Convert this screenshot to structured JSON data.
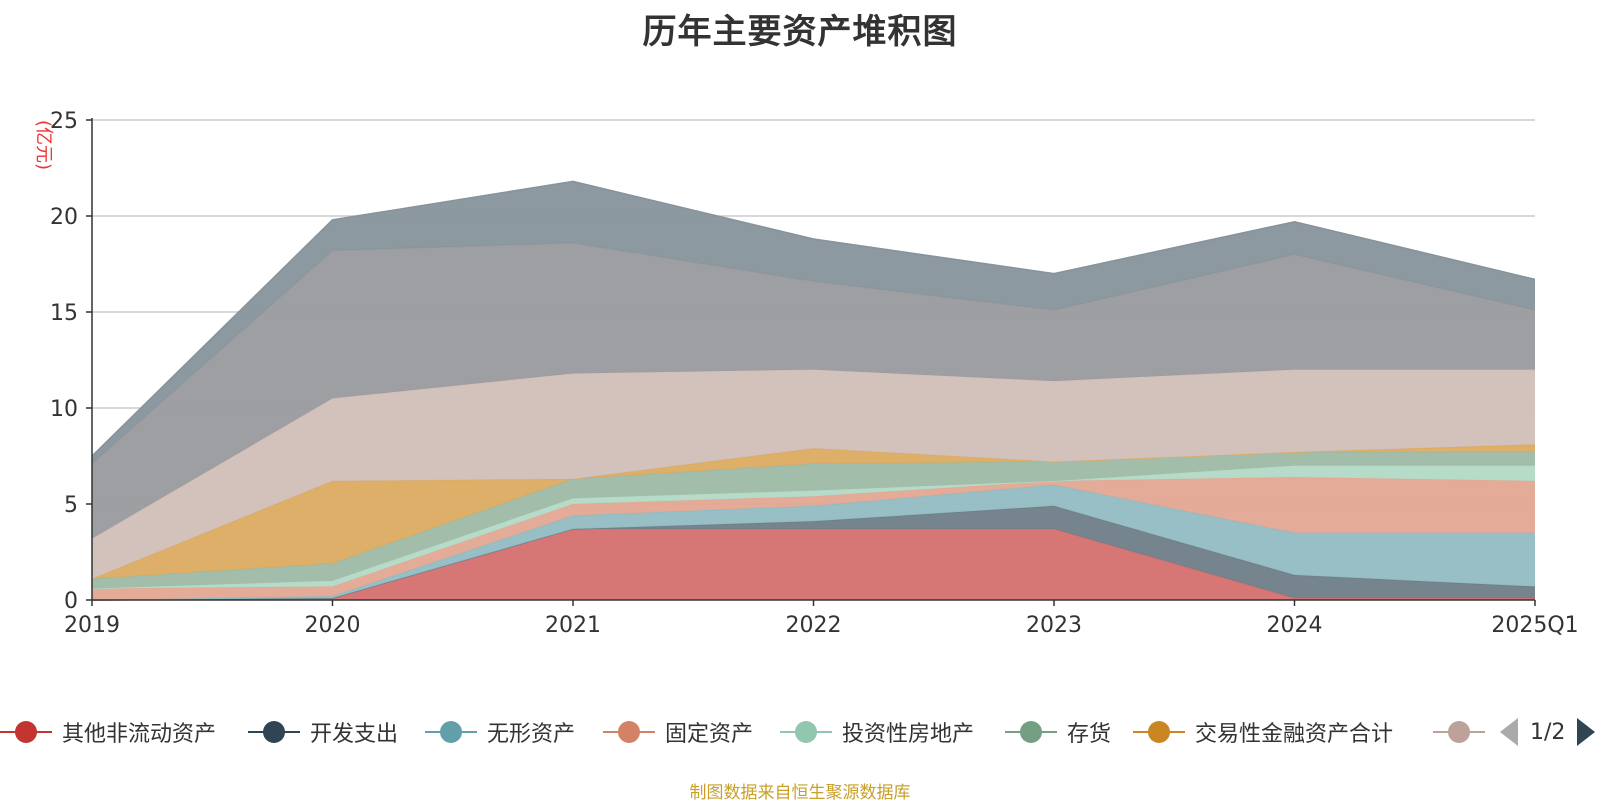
{
  "source_note": "制图数据来自恒生聚源数据库",
  "pager": {
    "text": "1/2"
  },
  "chart_data": {
    "type": "area",
    "stacked": true,
    "title": "历年主要资产堆积图",
    "ylabel": "(亿元)",
    "ylabel_color": "#ee3333",
    "ylim": [
      0,
      25
    ],
    "yticks": [
      0,
      5,
      10,
      15,
      20,
      25
    ],
    "ytick_labels": [
      "0",
      "5",
      "10",
      "15",
      "20",
      "25"
    ],
    "grid": true,
    "categories": [
      "2019",
      "2020",
      "2021",
      "2022",
      "2023",
      "2024",
      "2025Q1"
    ],
    "series": [
      {
        "name": "其他非流动资产",
        "color": "#c23531",
        "fill": "#d4706f",
        "values": [
          0.0,
          0.1,
          3.7,
          3.7,
          3.7,
          0.1,
          0.1
        ]
      },
      {
        "name": "开发支出",
        "color": "#2f4554",
        "fill": "#6f7d87",
        "values": [
          0.0,
          0.0,
          0.0,
          0.4,
          1.2,
          1.2,
          0.6
        ]
      },
      {
        "name": "无形资产",
        "color": "#61a0a8",
        "fill": "#91bcc2",
        "values": [
          0.0,
          0.1,
          0.7,
          0.8,
          1.1,
          2.2,
          2.8
        ]
      },
      {
        "name": "固定资产",
        "color": "#d48265",
        "fill": "#e3a892",
        "values": [
          0.6,
          0.5,
          0.6,
          0.5,
          0.2,
          2.9,
          2.7
        ]
      },
      {
        "name": "投资性房地产",
        "color": "#91c7ae",
        "fill": "#b3d9c6",
        "values": [
          0.0,
          0.3,
          0.3,
          0.3,
          0.0,
          0.6,
          0.8
        ]
      },
      {
        "name": "存货",
        "color": "#749f83",
        "fill": "#9dbba6",
        "values": [
          0.5,
          0.9,
          1.0,
          1.4,
          1.0,
          0.7,
          0.7
        ]
      },
      {
        "name": "交易性金融资产合计",
        "color": "#ca8622",
        "fill": "#dbab61",
        "values": [
          0.0,
          4.3,
          0.0,
          0.8,
          0.0,
          0.0,
          0.4
        ]
      },
      {
        "name": "",
        "color": "#bda29a",
        "fill": "#d1beb8",
        "values": [
          2.1,
          4.3,
          5.5,
          4.1,
          4.2,
          4.3,
          3.9
        ]
      },
      {
        "name": "",
        "color": "#6e7074",
        "fill": "#999a9d",
        "values": [
          3.9,
          7.7,
          6.8,
          4.6,
          3.7,
          6.0,
          3.1
        ]
      },
      {
        "name": "",
        "color": "#546570",
        "fill": "#87939b",
        "values": [
          0.4,
          1.6,
          3.2,
          2.2,
          1.9,
          1.7,
          1.6
        ]
      }
    ],
    "legend_position": "bottom",
    "legend_visible_count": 8
  }
}
